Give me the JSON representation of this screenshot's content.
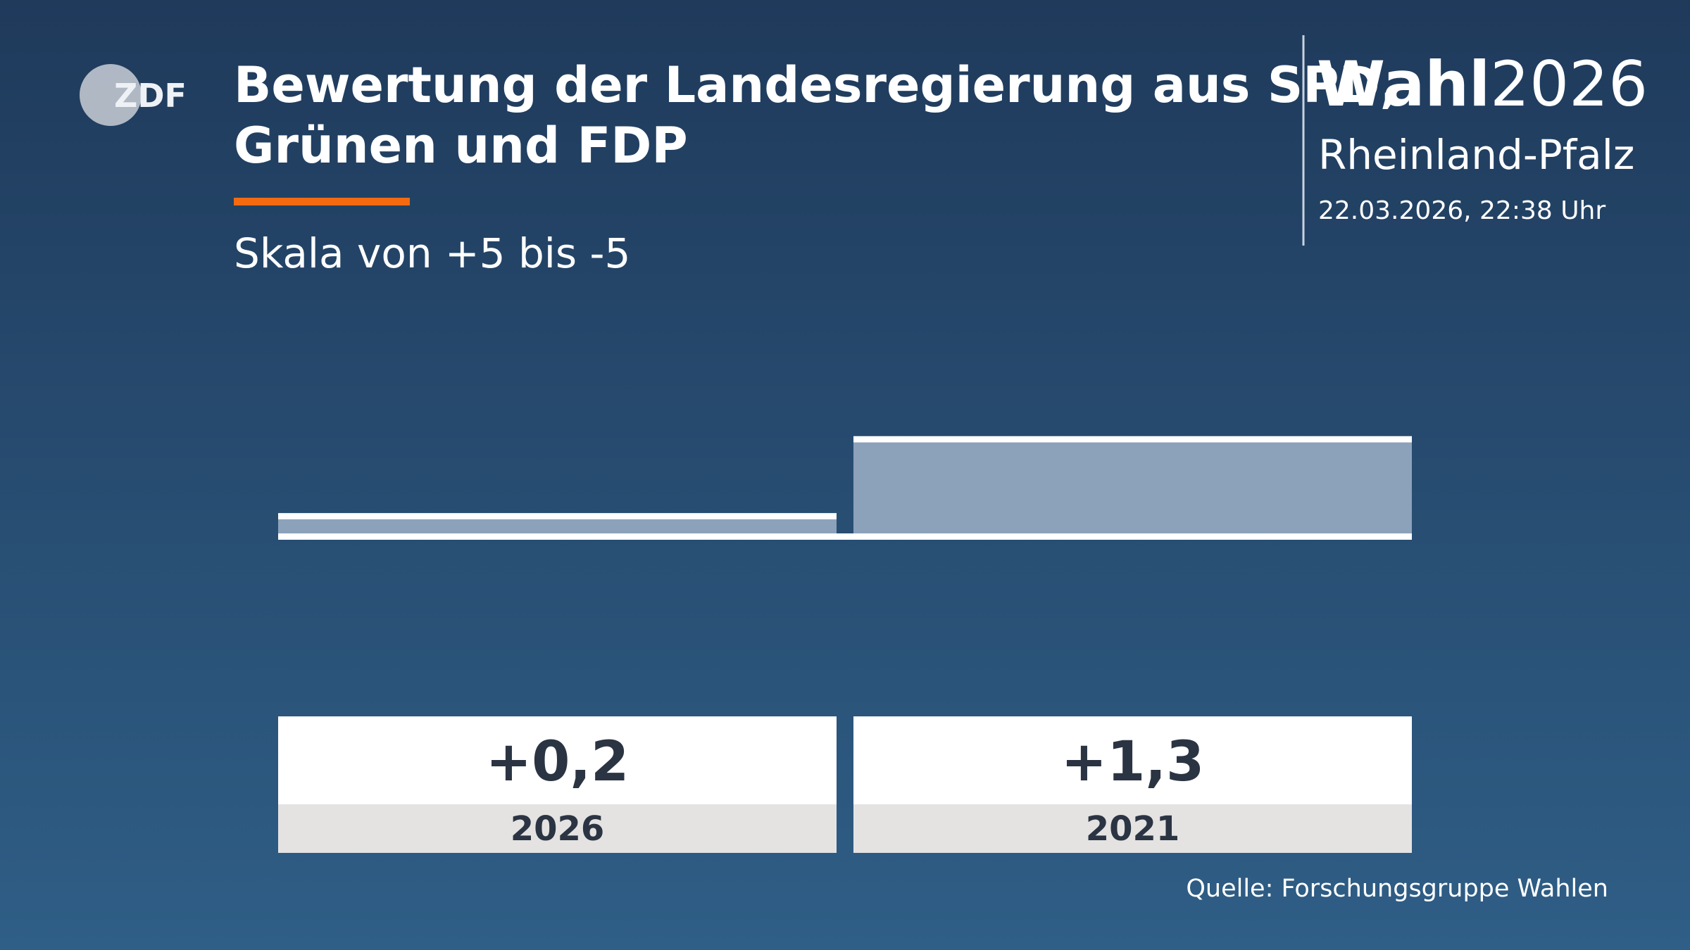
{
  "chart_data": {
    "type": "bar",
    "logo": "ZDF",
    "title": "Bewertung der Landesregierung aus SPD,\nGrünen und FDP",
    "subtitle": "Skala von +5 bis -5",
    "brand": "Wahl",
    "brand_year": "2026",
    "region": "Rheinland-Pfalz",
    "timestamp": "22.03.2026, 22:38 Uhr",
    "source": "Quelle: Forschungsgruppe Wahlen",
    "categories": [
      "2026",
      "2021"
    ],
    "values": [
      0.2,
      1.3
    ],
    "value_labels": [
      "+0,2",
      "+1,3"
    ],
    "color": "#8ca2ba",
    "ylim": [
      -5,
      5
    ]
  }
}
